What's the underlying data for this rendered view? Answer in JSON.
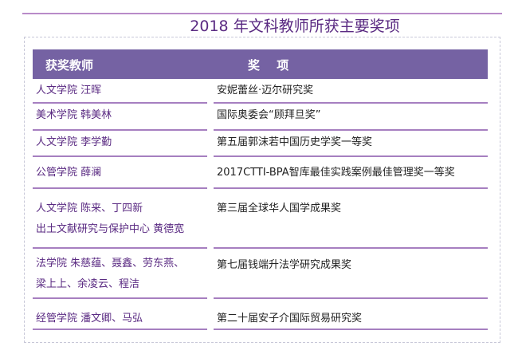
{
  "title": "2018 年文科教师所获主要奖项",
  "header": {
    "teacher": "获奖教师",
    "award": "奖 项"
  },
  "rows": [
    {
      "teacher": [
        "人文学院  汪晖"
      ],
      "award": "安妮蕾丝·迈尔研究奖"
    },
    {
      "teacher": [
        "美术学院  韩美林"
      ],
      "award": "国际奥委会“顾拜旦奖”"
    },
    {
      "teacher": [
        "人文学院  李学勤"
      ],
      "award": "第五届郭沫若中国历史学奖一等奖"
    },
    {
      "teacher": [
        "公管学院  薛澜"
      ],
      "award": "2017CTTI-BPA智库最佳实践案例最佳管理奖一等奖"
    },
    {
      "teacher": [
        "人文学院 陈来、丁四新",
        "出土文献研究与保护中心 黄德宽"
      ],
      "award": "第三届全球华人国学成果奖"
    },
    {
      "teacher": [
        "法学院 朱慈蕴、聂鑫、劳东燕、",
        "梁上上、余凌云、程洁"
      ],
      "award": "第七届钱端升法学研究成果奖"
    },
    {
      "teacher": [
        "经管学院 潘文卿、马弘"
      ],
      "award": "第二十届安子介国际贸易研究奖"
    }
  ]
}
